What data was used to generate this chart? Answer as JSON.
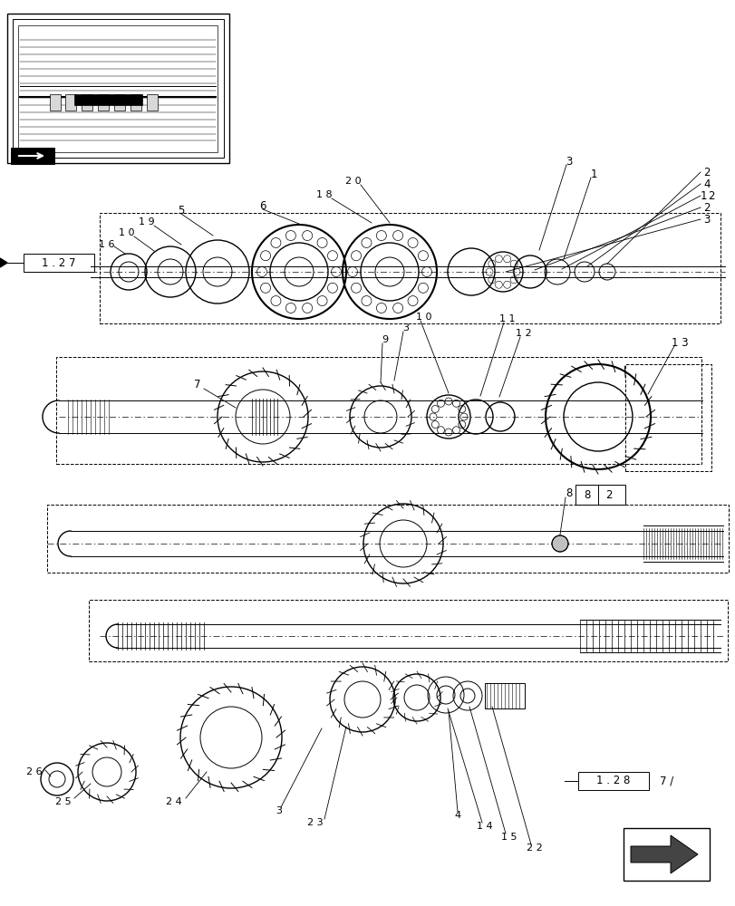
{
  "background_color": "#ffffff",
  "line_color": "#000000",
  "fig_width": 8.12,
  "fig_height": 10.0,
  "labels": {
    "ref_box_1": "1 . 2 7",
    "ref_box_2": "1 . 2 8",
    "part_2": "2",
    "part_3": "3",
    "part_4": "4",
    "part_1": "1",
    "part_5": "5",
    "part_6": "6",
    "part_7": "7",
    "part_8": "8",
    "part_9": "9",
    "part_13": "1 3",
    "part_ref2": "2",
    "part_7slash": "7 /"
  }
}
